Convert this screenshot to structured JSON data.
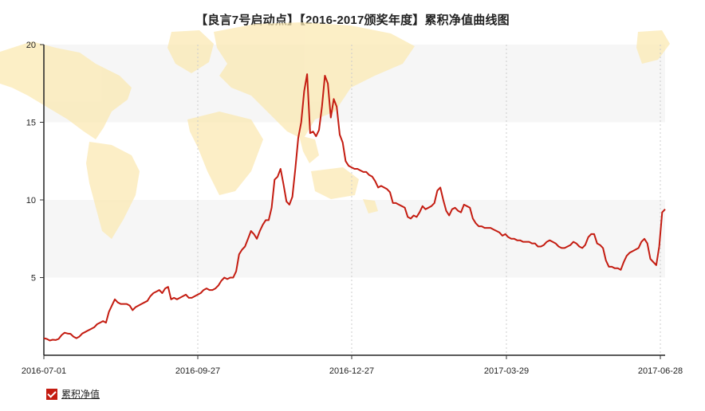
{
  "chart_data": {
    "type": "line",
    "title": "【良言7号启动点】【2016-2017颁奖年度】累积净值曲线图",
    "xlabel": "",
    "ylabel": "",
    "x_tick_labels": [
      "2016-07-01",
      "2016-09-27",
      "2016-12-27",
      "2017-03-29",
      "2017-06-28"
    ],
    "y_tick_labels": [
      "5",
      "10",
      "15",
      "20"
    ],
    "ylim": [
      0,
      20
    ],
    "grid": "vertical dashed at x ticks, alternating horizontal bands",
    "legend": "bottom-left",
    "series": [
      {
        "name": "累积净值",
        "color": "#c41c11",
        "values": [
          1.1,
          1.05,
          0.95,
          1.0,
          0.98,
          1.05,
          1.3,
          1.45,
          1.4,
          1.38,
          1.2,
          1.1,
          1.2,
          1.4,
          1.5,
          1.6,
          1.7,
          1.8,
          2.0,
          2.1,
          2.2,
          2.1,
          2.8,
          3.2,
          3.6,
          3.4,
          3.3,
          3.3,
          3.3,
          3.2,
          2.9,
          3.1,
          3.2,
          3.3,
          3.4,
          3.5,
          3.8,
          4.0,
          4.1,
          4.2,
          4.0,
          4.3,
          4.4,
          3.6,
          3.7,
          3.6,
          3.7,
          3.8,
          3.9,
          3.7,
          3.7,
          3.8,
          3.9,
          4.0,
          4.2,
          4.3,
          4.2,
          4.2,
          4.3,
          4.5,
          4.8,
          5.0,
          4.9,
          5.0,
          5.0,
          5.4,
          6.5,
          6.8,
          7.0,
          7.5,
          8.0,
          7.8,
          7.5,
          8.0,
          8.4,
          8.7,
          8.7,
          9.5,
          11.3,
          11.5,
          12.0,
          11.0,
          9.9,
          9.7,
          10.2,
          12.0,
          14.0,
          15.0,
          17.0,
          18.1,
          14.3,
          14.4,
          14.1,
          14.5,
          16.0,
          18.0,
          17.5,
          15.3,
          16.5,
          16.0,
          14.2,
          13.7,
          12.5,
          12.2,
          12.1,
          12.0,
          12.0,
          11.9,
          11.8,
          11.8,
          11.6,
          11.5,
          11.2,
          10.8,
          10.9,
          10.8,
          10.7,
          10.5,
          9.8,
          9.8,
          9.7,
          9.6,
          9.5,
          8.9,
          8.8,
          9.0,
          8.9,
          9.2,
          9.6,
          9.4,
          9.5,
          9.6,
          9.8,
          10.6,
          10.8,
          10.0,
          9.3,
          9.0,
          9.4,
          9.5,
          9.3,
          9.2,
          9.7,
          9.6,
          9.5,
          8.8,
          8.5,
          8.3,
          8.3,
          8.2,
          8.2,
          8.2,
          8.1,
          8.0,
          7.9,
          7.7,
          7.8,
          7.6,
          7.5,
          7.5,
          7.4,
          7.4,
          7.3,
          7.3,
          7.3,
          7.2,
          7.2,
          7.0,
          7.0,
          7.1,
          7.3,
          7.4,
          7.3,
          7.2,
          7.0,
          6.9,
          6.9,
          7.0,
          7.1,
          7.3,
          7.2,
          7.0,
          6.9,
          7.1,
          7.6,
          7.8,
          7.8,
          7.2,
          7.1,
          6.9,
          6.1,
          5.7,
          5.7,
          5.6,
          5.6,
          5.5,
          6.0,
          6.4,
          6.6,
          6.7,
          6.8,
          6.9,
          7.3,
          7.5,
          7.2,
          6.2,
          6.0,
          5.8,
          7.0,
          9.2,
          9.4
        ]
      }
    ]
  }
}
